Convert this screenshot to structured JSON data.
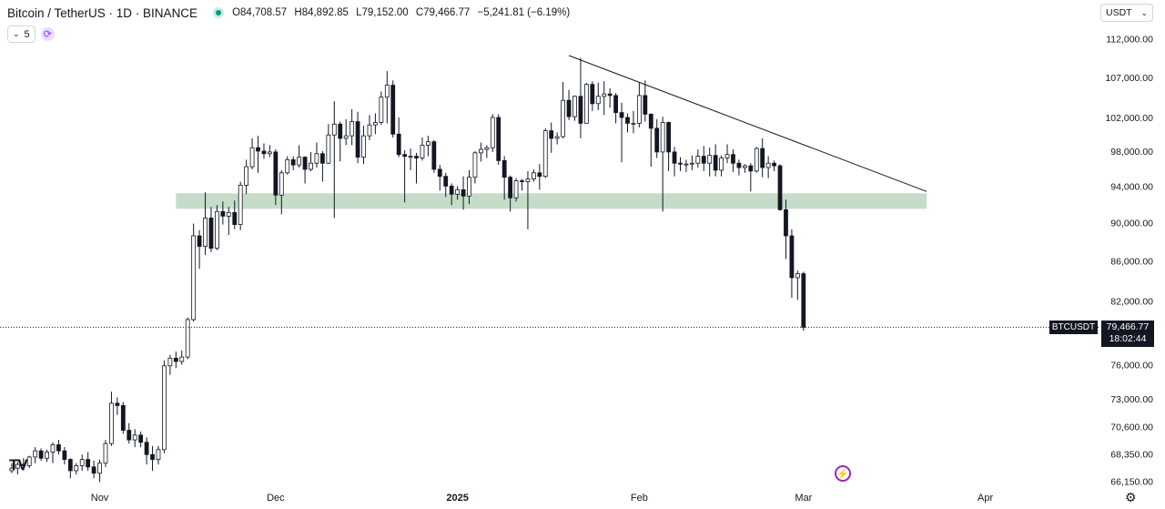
{
  "header": {
    "symbol": "Bitcoin / TetherUS · 1D · BINANCE",
    "open": "O84,708.57",
    "high": "H84,892.85",
    "low": "L79,152.00",
    "close": "C79,466.77",
    "change": "−5,241.81 (−6.19%)"
  },
  "indicator_count": "5",
  "currency": "USDT",
  "price_tag": {
    "symbol": "BTCUSDT",
    "price": "79,466.77",
    "countdown": "18:02:44"
  },
  "logo": "TV",
  "chart_data": {
    "type": "candlestick",
    "title": "",
    "ylabel": "",
    "y_scale": "log",
    "ylim": [
      65700,
      113800
    ],
    "yticks": [
      {
        "value": 66150,
        "label": "66,150.00"
      },
      {
        "value": 68350,
        "label": "68,350.00"
      },
      {
        "value": 70600,
        "label": "70,600.00"
      },
      {
        "value": 73000,
        "label": "73,000.00"
      },
      {
        "value": 76000,
        "label": "76,000.00"
      },
      {
        "value": 82000,
        "label": "82,000.00"
      },
      {
        "value": 86000,
        "label": "86,000.00"
      },
      {
        "value": 90000,
        "label": "90,000.00"
      },
      {
        "value": 94000,
        "label": "94,000.00"
      },
      {
        "value": 98000,
        "label": "98,000.00"
      },
      {
        "value": 102000,
        "label": "102,000.00"
      },
      {
        "value": 107000,
        "label": "107,000.00"
      },
      {
        "value": 112000,
        "label": "112,000.00"
      }
    ],
    "xrange": [
      "2024-10-15",
      "2025-04-20"
    ],
    "xticks": [
      {
        "date": "2024-11-01",
        "label": "Nov",
        "bold": false
      },
      {
        "date": "2024-12-01",
        "label": "Dec",
        "bold": false
      },
      {
        "date": "2025-01-01",
        "label": "2025",
        "bold": true
      },
      {
        "date": "2025-02-01",
        "label": "Feb",
        "bold": false
      },
      {
        "date": "2025-03-01",
        "label": "Mar",
        "bold": false
      },
      {
        "date": "2025-04-01",
        "label": "Apr",
        "bold": false
      }
    ],
    "start_date": "2024-10-17",
    "candles": [
      [
        67000,
        67600,
        66800,
        67200
      ],
      [
        67200,
        67700,
        66700,
        67500
      ],
      [
        67500,
        68000,
        67000,
        67400
      ],
      [
        67400,
        68200,
        67200,
        68100
      ],
      [
        68100,
        68900,
        67600,
        68600
      ],
      [
        68600,
        68800,
        67800,
        68000
      ],
      [
        68000,
        68700,
        67700,
        68500
      ],
      [
        68500,
        69300,
        67600,
        69100
      ],
      [
        69100,
        69500,
        68300,
        68600
      ],
      [
        68600,
        68900,
        67500,
        67900
      ],
      [
        67900,
        68000,
        66400,
        67000
      ],
      [
        67000,
        67600,
        66700,
        67400
      ],
      [
        67400,
        68300,
        67000,
        67900
      ],
      [
        67900,
        68500,
        67000,
        67300
      ],
      [
        67300,
        67800,
        66400,
        66800
      ],
      [
        66800,
        67900,
        66100,
        67600
      ],
      [
        67600,
        69500,
        67300,
        69200
      ],
      [
        69200,
        73600,
        69000,
        72600
      ],
      [
        72600,
        73100,
        71600,
        72400
      ],
      [
        72400,
        72700,
        70000,
        70300
      ],
      [
        70300,
        70900,
        69200,
        69500
      ],
      [
        69500,
        70400,
        68900,
        69900
      ],
      [
        69900,
        70200,
        68900,
        69300
      ],
      [
        69300,
        69700,
        67500,
        68300
      ],
      [
        68300,
        69000,
        67000,
        67900
      ],
      [
        67900,
        69000,
        67500,
        68700
      ],
      [
        68700,
        76400,
        68400,
        75900
      ],
      [
        75900,
        76900,
        75100,
        76600
      ],
      [
        76600,
        77200,
        75700,
        76300
      ],
      [
        76300,
        77300,
        76000,
        76700
      ],
      [
        76700,
        80400,
        76500,
        80200
      ],
      [
        80200,
        89900,
        80000,
        88600
      ],
      [
        88600,
        89200,
        85200,
        87500
      ],
      [
        87500,
        93300,
        86600,
        90500
      ],
      [
        90500,
        91700,
        86900,
        87300
      ],
      [
        87300,
        91900,
        87100,
        91200
      ],
      [
        91200,
        92300,
        89800,
        90700
      ],
      [
        90700,
        91700,
        88700,
        91100
      ],
      [
        91100,
        92400,
        89300,
        89800
      ],
      [
        89800,
        94500,
        89200,
        94100
      ],
      [
        94100,
        97000,
        93100,
        96200
      ],
      [
        96200,
        99500,
        95900,
        98400
      ],
      [
        98400,
        99800,
        95500,
        98000
      ],
      [
        98000,
        98900,
        97100,
        97700
      ],
      [
        97700,
        98700,
        97300,
        97900
      ],
      [
        97900,
        98200,
        91900,
        93000
      ],
      [
        93000,
        95800,
        90900,
        95500
      ],
      [
        95500,
        97400,
        95300,
        97000
      ],
      [
        97000,
        97400,
        95800,
        96400
      ],
      [
        96400,
        98700,
        96100,
        97300
      ],
      [
        97300,
        97400,
        94300,
        95900
      ],
      [
        95900,
        97900,
        95700,
        96600
      ],
      [
        96600,
        99000,
        96100,
        97700
      ],
      [
        97700,
        98000,
        94500,
        96600
      ],
      [
        96600,
        101200,
        96500,
        99900
      ],
      [
        99900,
        104000,
        90500,
        101200
      ],
      [
        101200,
        101500,
        96800,
        99500
      ],
      [
        99500,
        101800,
        98700,
        99800
      ],
      [
        99800,
        103000,
        98700,
        101500
      ],
      [
        101500,
        102700,
        96600,
        97300
      ],
      [
        97300,
        101000,
        96500,
        99800
      ],
      [
        99800,
        102300,
        99300,
        101100
      ],
      [
        101100,
        102500,
        100000,
        101400
      ],
      [
        101400,
        105200,
        101100,
        104500
      ],
      [
        104500,
        107800,
        101300,
        106000
      ],
      [
        106000,
        106600,
        99600,
        100000
      ],
      [
        100000,
        102000,
        97300,
        97600
      ],
      [
        97600,
        98100,
        92200,
        97400
      ],
      [
        97400,
        98300,
        95800,
        97400
      ],
      [
        97400,
        97800,
        94300,
        97200
      ],
      [
        97200,
        99600,
        96900,
        98700
      ],
      [
        98700,
        99800,
        97400,
        99100
      ],
      [
        99100,
        99300,
        95500,
        95900
      ],
      [
        95900,
        96400,
        93500,
        95100
      ],
      [
        95100,
        95500,
        92800,
        94000
      ],
      [
        94000,
        94300,
        91900,
        93100
      ],
      [
        93100,
        94000,
        92500,
        93600
      ],
      [
        93600,
        95100,
        91400,
        92900
      ],
      [
        92900,
        95800,
        92000,
        95000
      ],
      [
        95000,
        98000,
        94300,
        97800
      ],
      [
        97800,
        99000,
        96800,
        98200
      ],
      [
        98200,
        98700,
        97200,
        98400
      ],
      [
        98400,
        102400,
        97900,
        102000
      ],
      [
        102000,
        102400,
        96400,
        96900
      ],
      [
        96900,
        97400,
        92500,
        95000
      ],
      [
        95000,
        95200,
        91200,
        92700
      ],
      [
        92700,
        94900,
        92300,
        94600
      ],
      [
        94600,
        94800,
        93500,
        94500
      ],
      [
        94500,
        95700,
        89300,
        94800
      ],
      [
        94800,
        95900,
        94500,
        95500
      ],
      [
        95500,
        96500,
        93600,
        95100
      ],
      [
        95100,
        100700,
        94900,
        100400
      ],
      [
        100400,
        101400,
        97800,
        99500
      ],
      [
        99500,
        100200,
        98800,
        99700
      ],
      [
        99700,
        106400,
        99500,
        104100
      ],
      [
        104100,
        105400,
        101700,
        102100
      ],
      [
        102100,
        104700,
        101600,
        104600
      ],
      [
        104600,
        109500,
        99500,
        101300
      ],
      [
        101300,
        106300,
        101300,
        106100
      ],
      [
        106100,
        106500,
        102800,
        103700
      ],
      [
        103700,
        106300,
        102900,
        104600
      ],
      [
        104600,
        106500,
        102300,
        104900
      ],
      [
        104900,
        105600,
        103200,
        104700
      ],
      [
        104700,
        105000,
        101300,
        102600
      ],
      [
        102600,
        103800,
        96700,
        102000
      ],
      [
        102000,
        102500,
        100200,
        101300
      ],
      [
        101300,
        102800,
        100100,
        101300
      ],
      [
        101300,
        106400,
        100800,
        104700
      ],
      [
        104700,
        106600,
        101500,
        102400
      ],
      [
        102400,
        102500,
        96200,
        100700
      ],
      [
        100700,
        101800,
        97200,
        97900
      ],
      [
        97900,
        102100,
        91200,
        101400
      ],
      [
        101400,
        101500,
        95700,
        97900
      ],
      [
        97900,
        98500,
        95100,
        96600
      ],
      [
        96600,
        97300,
        95700,
        96500
      ],
      [
        96500,
        97000,
        95600,
        96500
      ],
      [
        96500,
        97500,
        95800,
        96600
      ],
      [
        96600,
        98200,
        96100,
        97400
      ],
      [
        97400,
        98600,
        95700,
        96600
      ],
      [
        96600,
        98400,
        95100,
        97500
      ],
      [
        97500,
        98800,
        95100,
        95800
      ],
      [
        95800,
        97500,
        95100,
        97200
      ],
      [
        97200,
        98800,
        96600,
        97600
      ],
      [
        97600,
        98200,
        95600,
        96600
      ],
      [
        96600,
        97000,
        95200,
        96100
      ],
      [
        96100,
        96500,
        95500,
        96300
      ],
      [
        96300,
        96600,
        93400,
        95700
      ],
      [
        95700,
        98500,
        95500,
        98300
      ],
      [
        98300,
        99500,
        95000,
        96100
      ],
      [
        96100,
        97400,
        94900,
        96600
      ],
      [
        96600,
        96900,
        95700,
        96300
      ],
      [
        96300,
        96500,
        91300,
        91400
      ],
      [
        91400,
        92500,
        86200,
        88600
      ],
      [
        88600,
        89300,
        82300,
        84300
      ],
      [
        84300,
        85000,
        82100,
        84700
      ],
      [
        84700,
        84900,
        79150,
        79470
      ]
    ],
    "ranges": [
      {
        "name": "support-zone",
        "y_min": 91500,
        "y_max": 93200,
        "x_start": "2024-11-14",
        "x_end": "2025-03-22",
        "color": "#c5dcc8"
      }
    ],
    "trendlines": [
      {
        "name": "descending-trendline",
        "start": [
          "2025-01-20",
          109800
        ],
        "end": [
          "2025-03-22",
          93400
        ]
      }
    ],
    "current_price": 79466.77,
    "colors": {
      "up_fill": "#ffffff",
      "down_fill": "#131722",
      "wick": "#131722",
      "price_line": "#131722"
    }
  }
}
